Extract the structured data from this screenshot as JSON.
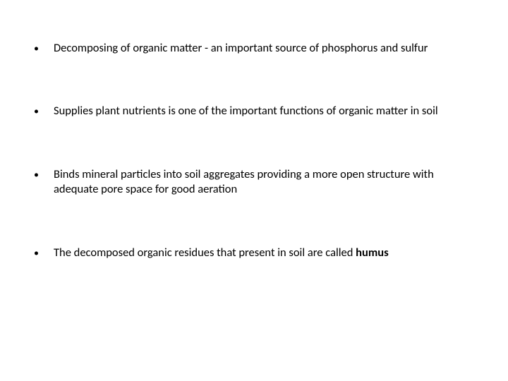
{
  "slide": {
    "text_color": "#000000",
    "background_color": "#ffffff",
    "font_family": "Calibri, 'Segoe UI', Arial, sans-serif",
    "font_size_pt": 12,
    "bullets": [
      {
        "html": "Decomposing of organic matter - an important source of phosphorus and sulfur"
      },
      {
        "html": "Supplies plant nutrients is one of the important functions of organic matter in soil"
      },
      {
        "html": "Binds mineral particles into soil aggregates providing a more open structure with adequate pore space for good aeration"
      },
      {
        "html": "The decomposed organic residues that present in soil are called <span class=\"bold\">humus</span>"
      }
    ]
  }
}
